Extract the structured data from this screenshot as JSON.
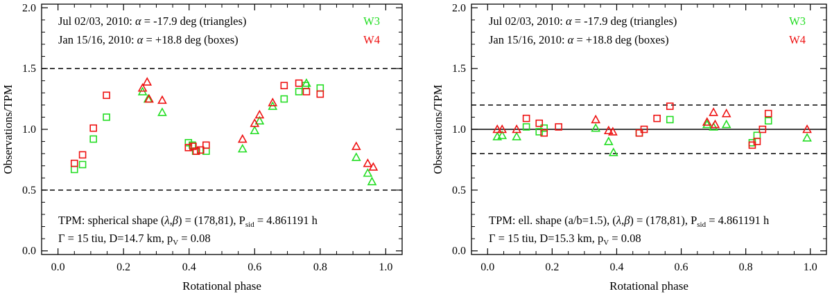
{
  "chart_data": [
    {
      "type": "scatter",
      "xlabel": "Rotational phase",
      "ylabel": "Observations/TPM",
      "xlim": [
        -0.05,
        1.05
      ],
      "ylim": [
        -0.03,
        2.03
      ],
      "xticks": [
        "0.0",
        "0.2",
        "0.4",
        "0.6",
        "0.8",
        "1.0"
      ],
      "yticks": [
        "0.0",
        "0.5",
        "1.0",
        "1.5",
        "2.0"
      ],
      "annotations": {
        "line1_prefix": "Jul 02/03, 2010: ",
        "line1_alpha": "α",
        "line1_suffix": " = -17.9 deg (triangles)",
        "line2_prefix": "Jan 15/16, 2010: ",
        "line2_alpha": "α",
        "line2_suffix": " = +18.8 deg (boxes)",
        "tpm_a": "TPM: spherical shape (",
        "tpm_lambda": "λ",
        "tpm_comma": ",",
        "tpm_beta": "β",
        "tpm_b": ") = (178,81), P",
        "tpm_sub": "sid",
        "tpm_c": " = 4.861191 h",
        "param_a": "Γ = 15 tiu, D=14.7 km, p",
        "param_sub": "V",
        "param_c": " = 0.08"
      },
      "legend": [
        {
          "label": "W3",
          "color": "#22dd22"
        },
        {
          "label": "W4",
          "color": "#ee1111"
        }
      ],
      "reference_lines": [
        {
          "y": 1.5,
          "style": "dashed"
        },
        {
          "y": 0.5,
          "style": "dashed"
        }
      ],
      "series": [
        {
          "name": "W3",
          "marker": "square",
          "color": "#22dd22",
          "x": [
            0.05,
            0.075,
            0.108,
            0.148,
            0.398,
            0.41,
            0.42,
            0.452,
            0.69,
            0.735,
            0.755,
            0.8
          ],
          "y": [
            0.67,
            0.71,
            0.92,
            1.1,
            0.89,
            0.87,
            0.82,
            0.82,
            1.25,
            1.31,
            1.36,
            1.34
          ]
        },
        {
          "name": "W4",
          "marker": "square",
          "color": "#ee1111",
          "x": [
            0.05,
            0.075,
            0.108,
            0.148,
            0.398,
            0.412,
            0.422,
            0.435,
            0.452,
            0.69,
            0.735,
            0.758,
            0.8
          ],
          "y": [
            0.72,
            0.79,
            1.01,
            1.28,
            0.85,
            0.86,
            0.82,
            0.83,
            0.87,
            1.36,
            1.38,
            1.31,
            1.29
          ]
        },
        {
          "name": "W3",
          "marker": "triangle",
          "color": "#22dd22",
          "x": [
            0.258,
            0.275,
            0.318,
            0.563,
            0.6,
            0.615,
            0.655,
            0.758,
            0.91,
            0.945,
            0.958
          ],
          "y": [
            1.31,
            1.25,
            1.14,
            0.84,
            0.99,
            1.07,
            1.19,
            1.38,
            0.77,
            0.64,
            0.57
          ]
        },
        {
          "name": "W4",
          "marker": "triangle",
          "color": "#ee1111",
          "x": [
            0.258,
            0.272,
            0.278,
            0.318,
            0.563,
            0.6,
            0.615,
            0.655,
            0.91,
            0.945,
            0.962
          ],
          "y": [
            1.34,
            1.39,
            1.25,
            1.24,
            0.92,
            1.05,
            1.12,
            1.22,
            0.86,
            0.72,
            0.69
          ]
        }
      ]
    },
    {
      "type": "scatter",
      "xlabel": "Rotational phase",
      "ylabel": "Observations/TPM",
      "xlim": [
        -0.05,
        1.05
      ],
      "ylim": [
        -0.03,
        2.03
      ],
      "xticks": [
        "0.0",
        "0.2",
        "0.4",
        "0.6",
        "0.8",
        "1.0"
      ],
      "yticks": [
        "0.0",
        "0.5",
        "1.0",
        "1.5",
        "2.0"
      ],
      "annotations": {
        "line1_prefix": "Jul 02/03, 2010: ",
        "line1_alpha": "α",
        "line1_suffix": " = -17.9 deg (triangles)",
        "line2_prefix": "Jan 15/16, 2010: ",
        "line2_alpha": "α",
        "line2_suffix": " = +18.8 deg (boxes)",
        "tpm_a": "TPM: ell. shape (a/b=1.5), (",
        "tpm_lambda": "λ",
        "tpm_comma": ",",
        "tpm_beta": "β",
        "tpm_b": ") = (178,81), P",
        "tpm_sub": "sid",
        "tpm_c": " = 4.861191 h",
        "param_a": "Γ = 15 tiu, D=15.3 km, p",
        "param_sub": "V",
        "param_c": " = 0.08"
      },
      "legend": [
        {
          "label": "W3",
          "color": "#22dd22"
        },
        {
          "label": "W4",
          "color": "#ee1111"
        }
      ],
      "reference_lines": [
        {
          "y": 1.2,
          "style": "dashed"
        },
        {
          "y": 1.0,
          "style": "solid"
        },
        {
          "y": 0.8,
          "style": "dashed"
        }
      ],
      "series": [
        {
          "name": "W3",
          "marker": "square",
          "color": "#22dd22",
          "x": [
            0.12,
            0.16,
            0.175,
            0.47,
            0.565,
            0.82,
            0.835,
            0.87
          ],
          "y": [
            1.02,
            0.98,
            1.01,
            0.97,
            1.08,
            0.89,
            0.95,
            1.07
          ]
        },
        {
          "name": "W4",
          "marker": "square",
          "color": "#ee1111",
          "x": [
            0.12,
            0.16,
            0.175,
            0.22,
            0.47,
            0.485,
            0.525,
            0.565,
            0.82,
            0.835,
            0.852,
            0.87
          ],
          "y": [
            1.09,
            1.05,
            0.97,
            1.02,
            0.97,
            1.0,
            1.09,
            1.19,
            0.87,
            0.9,
            1.0,
            1.13
          ]
        },
        {
          "name": "W3",
          "marker": "triangle",
          "color": "#22dd22",
          "x": [
            0.03,
            0.045,
            0.09,
            0.335,
            0.375,
            0.39,
            0.68,
            0.7,
            0.74,
            0.99
          ],
          "y": [
            0.94,
            0.95,
            0.94,
            1.01,
            0.9,
            0.81,
            1.04,
            1.02,
            1.04,
            0.93
          ]
        },
        {
          "name": "W4",
          "marker": "triangle",
          "color": "#ee1111",
          "x": [
            0.03,
            0.045,
            0.09,
            0.335,
            0.375,
            0.388,
            0.68,
            0.7,
            0.705,
            0.74,
            0.99
          ],
          "y": [
            1.0,
            1.0,
            1.0,
            1.08,
            0.99,
            0.98,
            1.06,
            1.14,
            1.04,
            1.13,
            1.0
          ]
        }
      ]
    }
  ]
}
